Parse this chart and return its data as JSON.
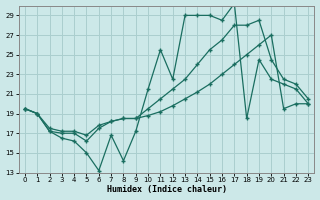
{
  "xlabel": "Humidex (Indice chaleur)",
  "xlim": [
    -0.5,
    23.5
  ],
  "ylim": [
    13,
    30
  ],
  "yticks": [
    13,
    15,
    17,
    19,
    21,
    23,
    25,
    27,
    29
  ],
  "xticks": [
    0,
    1,
    2,
    3,
    4,
    5,
    6,
    7,
    8,
    9,
    10,
    11,
    12,
    13,
    14,
    15,
    16,
    17,
    18,
    19,
    20,
    21,
    22,
    23
  ],
  "bg_color": "#cce8e8",
  "grid_color": "#aacece",
  "line_color": "#1a6e60",
  "line1_x": [
    0,
    1,
    2,
    3,
    4,
    5,
    6,
    7,
    8,
    9,
    10,
    11,
    12,
    13,
    14,
    15,
    16,
    17,
    18,
    19,
    20,
    21,
    22,
    23
  ],
  "line1_y": [
    19.5,
    19.0,
    17.2,
    16.5,
    16.2,
    15.0,
    13.2,
    16.8,
    14.2,
    17.2,
    21.5,
    25.5,
    22.5,
    29.0,
    29.0,
    29.0,
    28.5,
    30.2,
    18.5,
    24.5,
    22.5,
    22.0,
    21.5,
    20.0
  ],
  "line2_x": [
    0,
    1,
    2,
    3,
    4,
    5,
    6,
    7,
    8,
    9,
    10,
    11,
    12,
    13,
    14,
    15,
    16,
    17,
    18,
    19,
    20,
    21,
    22,
    23
  ],
  "line2_y": [
    19.5,
    19.0,
    17.2,
    17.0,
    17.0,
    16.2,
    17.5,
    18.2,
    18.5,
    18.5,
    19.5,
    20.5,
    21.5,
    22.5,
    24.0,
    25.5,
    26.5,
    28.0,
    28.0,
    28.5,
    24.5,
    22.5,
    22.0,
    20.5
  ],
  "line3_x": [
    0,
    1,
    2,
    3,
    4,
    5,
    6,
    7,
    8,
    9,
    10,
    11,
    12,
    13,
    14,
    15,
    16,
    17,
    18,
    19,
    20,
    21,
    22,
    23
  ],
  "line3_y": [
    19.5,
    19.0,
    17.5,
    17.2,
    17.2,
    16.8,
    17.8,
    18.2,
    18.5,
    18.5,
    18.8,
    19.2,
    19.8,
    20.5,
    21.2,
    22.0,
    23.0,
    24.0,
    25.0,
    26.0,
    27.0,
    19.5,
    20.0,
    20.0
  ]
}
